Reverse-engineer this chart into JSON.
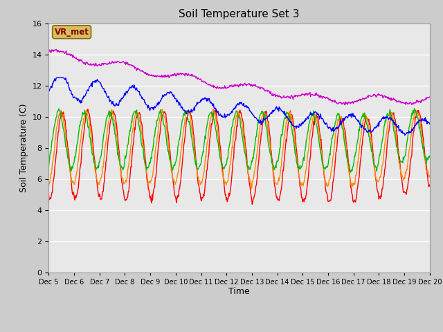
{
  "title": "Soil Temperature Set 3",
  "xlabel": "Time",
  "ylabel": "Soil Temperature (C)",
  "ylim": [
    0,
    16
  ],
  "yticks": [
    0,
    2,
    4,
    6,
    8,
    10,
    12,
    14,
    16
  ],
  "fig_bg": "#cccccc",
  "plot_bg": "#e8e8e8",
  "annotation_text": "VR_met",
  "annotation_bg": "#d4c060",
  "annotation_fg": "#8b0000",
  "annotation_border": "#8b6600",
  "series": {
    "Tsoil -2cm": {
      "color": "#ff0000",
      "lw": 1.0
    },
    "Tsoil -4cm": {
      "color": "#ff8800",
      "lw": 1.0
    },
    "Tsoil -8cm": {
      "color": "#00bb00",
      "lw": 1.0
    },
    "Tsoil -16cm": {
      "color": "#0000ff",
      "lw": 1.0
    },
    "Tsoil -32cm": {
      "color": "#cc00cc",
      "lw": 1.0
    }
  },
  "xtick_labels": [
    "Dec 5",
    "Dec 6",
    "Dec 7",
    "Dec 8",
    "Dec 9",
    "Dec 10",
    "Dec 11",
    "Dec 12",
    "Dec 13",
    "Dec 14",
    "Dec 15",
    "Dec 16",
    "Dec 17",
    "Dec 18",
    "Dec 19",
    "Dec 20"
  ],
  "n_days": 15,
  "pts_per_day": 48
}
